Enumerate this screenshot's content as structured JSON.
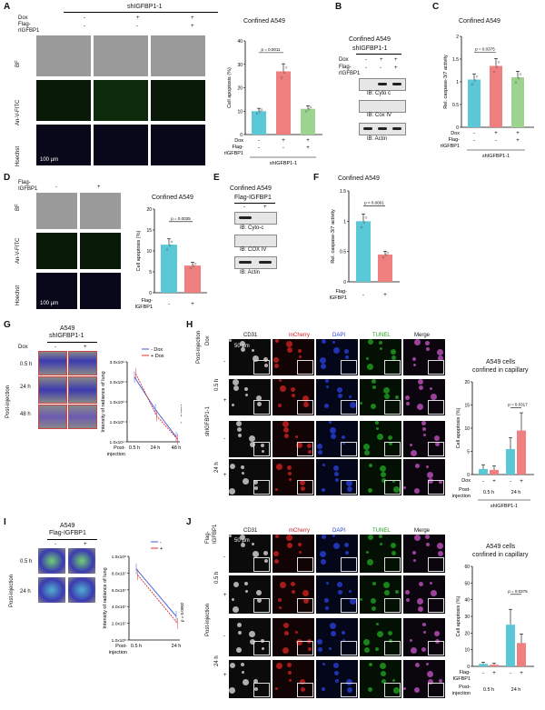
{
  "panels": {
    "A": "A",
    "B": "B",
    "C": "C",
    "D": "D",
    "E": "E",
    "F": "F",
    "G": "G",
    "H": "H",
    "I": "I",
    "J": "J"
  },
  "common": {
    "dox": "Dox",
    "flag": "Flag-",
    "rigfbp1": "rIGFBP1",
    "flag_igfbp1": "Flag-IGFBP1",
    "flag_two": "Flag-",
    "igfbp1": "IGFBP1",
    "minus": "-",
    "plus": "+",
    "scale100": "100 µm",
    "scale50": "50 µm",
    "bf": "BF",
    "anv": "An-V-FITC",
    "hoechst": "Hoechst",
    "post_injection": "Post-injection",
    "post": "Post-",
    "injection": "injection",
    "confined": "Confined A549",
    "cells_confined": "A549 cells",
    "in_capillary": "confined in capillary",
    "a549": "A549",
    "sh": "shIGFBP1-1",
    "cyto": "IB: Cyto c",
    "cyto2": "IB: Cyto-c",
    "cox": "IB: Cox IV",
    "cox2": "IB: COX IV",
    "actin": "IB: Actin",
    "cd31": "CD31",
    "mcherry": "mCherry",
    "dapi": "DAPI",
    "tunel": "TUNEL",
    "merge": "Merge",
    "t05": "0.5 h",
    "t24": "24 h",
    "t48": "48 h",
    "cell_apop": "Cell apoptosis (%)",
    "caspase": "Rel. caspase-3/7 activity",
    "radiance": "Intensity of radiance of lung",
    "minus_dox": "- Dox",
    "plus_dox": "+ Dox",
    "legend_minus": "-",
    "legend_plus": "+"
  },
  "stats": {
    "a": "p = 0.0011",
    "c": "p = 0.0375",
    "d": "p = 0.0035",
    "f": "p < 0.0001",
    "g": "p = 0.0004",
    "h": "p = 0.0317",
    "i": "p = 0.0002",
    "j": "p = 0.0375"
  },
  "chart_data": [
    {
      "id": "A",
      "type": "bar",
      "categories": [
        "-/-",
        "+/-",
        "+/+"
      ],
      "values": [
        10,
        27,
        11
      ],
      "ylabel": "Cell apoptosis (%)",
      "ylim": [
        0,
        40
      ],
      "yticks": [
        0,
        10,
        20,
        30,
        40
      ],
      "colors": [
        "#5bc8d8",
        "#f08080",
        "#9bd38f"
      ]
    },
    {
      "id": "C",
      "type": "bar",
      "categories": [
        "-/-",
        "+/-",
        "+/+"
      ],
      "values": [
        1.05,
        1.35,
        1.1
      ],
      "ylabel": "Rel. caspase-3/7 activity",
      "ylim": [
        0,
        2.0
      ],
      "yticks": [
        0,
        0.5,
        1.0,
        1.5,
        2.0
      ],
      "colors": [
        "#5bc8d8",
        "#f08080",
        "#9bd38f"
      ]
    },
    {
      "id": "D",
      "type": "bar",
      "categories": [
        "-",
        "+"
      ],
      "values": [
        11.5,
        6.5
      ],
      "ylabel": "Cell apoptosis (%)",
      "ylim": [
        0,
        20
      ],
      "yticks": [
        0,
        5,
        10,
        15,
        20
      ],
      "colors": [
        "#5bc8d8",
        "#f08080"
      ]
    },
    {
      "id": "F",
      "type": "bar",
      "categories": [
        "-",
        "+"
      ],
      "values": [
        1.0,
        0.45
      ],
      "ylabel": "Rel. caspase-3/7 activity",
      "ylim": [
        0,
        1.5
      ],
      "yticks": [
        0,
        0.5,
        1.0,
        1.5
      ],
      "colors": [
        "#5bc8d8",
        "#f08080"
      ]
    },
    {
      "id": "H",
      "type": "bar",
      "groups": [
        "0.5 h",
        "24 h"
      ],
      "values": [
        [
          1.2,
          1.0
        ],
        [
          5.5,
          9.5
        ]
      ],
      "ylabel": "Cell apoptosis (%)",
      "ylim": [
        0,
        20
      ],
      "yticks": [
        0,
        5,
        10,
        15,
        20
      ],
      "colors": [
        "#5bc8d8",
        "#f08080"
      ]
    },
    {
      "id": "J",
      "type": "bar",
      "groups": [
        "0.5 h",
        "24 h"
      ],
      "values": [
        [
          1.5,
          1.0
        ],
        [
          25,
          14
        ]
      ],
      "ylabel": "Cell apoptosis (%)",
      "ylim": [
        0,
        60
      ],
      "yticks": [
        0,
        10,
        20,
        30,
        40,
        50,
        60
      ],
      "colors": [
        "#5bc8d8",
        "#f08080"
      ]
    },
    {
      "id": "G",
      "type": "line",
      "x": [
        "0.5 h",
        "24 h",
        "48 h"
      ],
      "series": [
        {
          "name": "- Dox",
          "values": [
            2000000.0,
            1000000.0,
            150000.0
          ],
          "color": "#3b5bd8"
        },
        {
          "name": "+ Dox",
          "values": [
            2100000.0,
            800000.0,
            80000.0
          ],
          "color": "#e03030"
        }
      ],
      "ylabel": "Intensity of radiance of lung",
      "yticks": [
        "1.0x10^4",
        "1.0x10^5",
        "1.0x10^6",
        "2.0x10^6",
        "3.0x10^6"
      ]
    },
    {
      "id": "I",
      "type": "line",
      "x": [
        "0.5 h",
        "24 h"
      ],
      "series": [
        {
          "name": "-",
          "values": [
            60000000.0,
            20000000.0
          ],
          "color": "#3b5bd8"
        },
        {
          "name": "+",
          "values": [
            55000000.0,
            14000000.0
          ],
          "color": "#e03030"
        }
      ],
      "ylabel": "Intensity of radiance of lung",
      "yticks": [
        "1.0x10^6",
        "2.0x10^7",
        "4.0x10^7",
        "6.0x10^7",
        "8.0x10^7",
        "1.0x10^8"
      ]
    }
  ]
}
